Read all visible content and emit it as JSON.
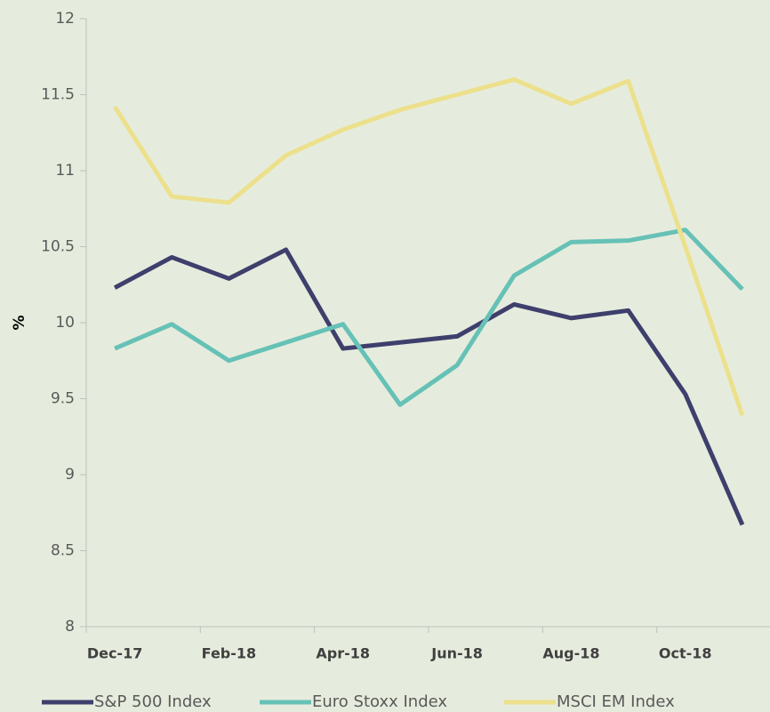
{
  "chart_data": {
    "type": "line",
    "y_label": "%",
    "categories": [
      "Dec-17",
      null,
      "Feb-18",
      null,
      "Apr-18",
      null,
      "Jun-18",
      null,
      "Aug-18",
      null,
      "Oct-18",
      null
    ],
    "series": [
      {
        "name": "S&P 500 Index",
        "color": "#3e3f6c",
        "values": [
          10.23,
          10.43,
          10.29,
          10.48,
          9.83,
          9.87,
          9.91,
          10.12,
          10.03,
          10.08,
          9.53,
          8.67
        ]
      },
      {
        "name": "Euro Stoxx Index",
        "color": "#66c1b6",
        "values": [
          9.83,
          9.99,
          9.75,
          9.87,
          9.99,
          9.46,
          9.72,
          10.31,
          10.53,
          10.54,
          10.61,
          10.22
        ]
      },
      {
        "name": "MSCI EM Index",
        "color": "#ece08c",
        "values": [
          11.42,
          10.83,
          10.79,
          11.1,
          11.27,
          11.4,
          11.5,
          11.6,
          11.44,
          11.59,
          10.5,
          9.39
        ]
      }
    ],
    "ylim": [
      8,
      12
    ],
    "yticks": [
      8,
      8.5,
      9,
      9.5,
      10,
      10.5,
      11,
      11.5,
      12
    ],
    "grid": false,
    "legend": "bottom"
  }
}
